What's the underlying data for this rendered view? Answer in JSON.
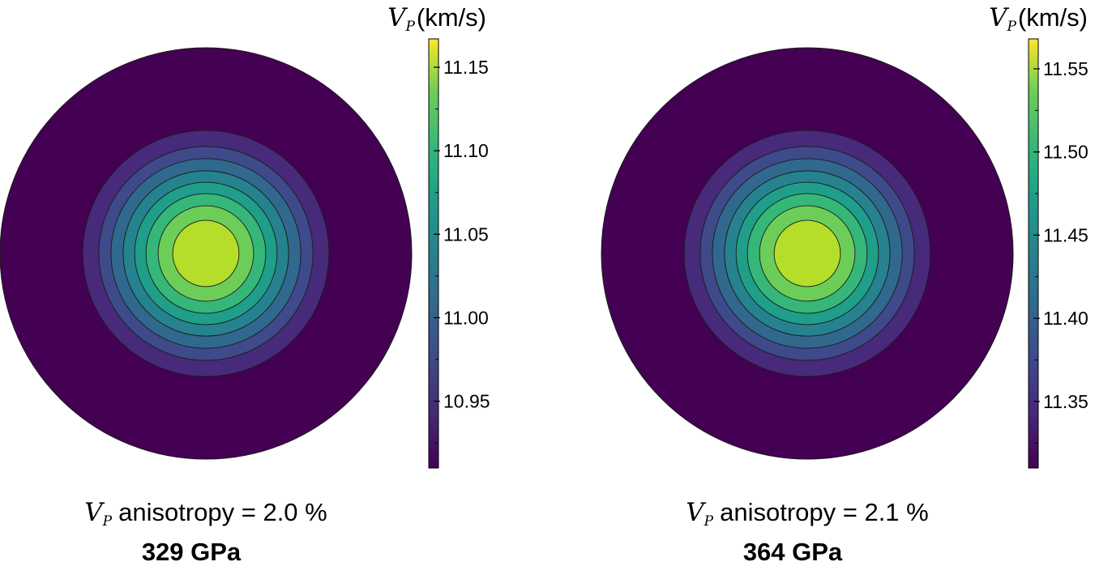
{
  "chart_data": [
    {
      "type": "heatmap",
      "subtype": "filled-contour-polar",
      "colormap": "viridis",
      "colorbar_label_symbol": "V",
      "colorbar_label_subscript": "P",
      "colorbar_label_unit": "(km/s)",
      "colorbar_range": [
        10.91,
        11.167
      ],
      "colorbar_ticks": [
        "10.95",
        "11.00",
        "11.05",
        "11.10",
        "11.15"
      ],
      "colorbar_tick_values": [
        10.95,
        11.0,
        11.05,
        11.1,
        11.15
      ],
      "max_at": "center",
      "contour_line_count": 8,
      "caption_symbol": "V",
      "caption_subscript": "P",
      "caption_text": "anisotropy = 2.0 %",
      "anisotropy_percent": 2.0,
      "pressure_label": "329 GPa"
    },
    {
      "type": "heatmap",
      "subtype": "filled-contour-polar",
      "colormap": "viridis",
      "colorbar_label_symbol": "V",
      "colorbar_label_subscript": "P",
      "colorbar_label_unit": "(km/s)",
      "colorbar_range": [
        11.31,
        11.568
      ],
      "colorbar_ticks": [
        "11.35",
        "11.40",
        "11.45",
        "11.50",
        "11.55"
      ],
      "colorbar_tick_values": [
        11.35,
        11.4,
        11.45,
        11.5,
        11.55
      ],
      "max_at": "center",
      "contour_line_count": 8,
      "caption_symbol": "V",
      "caption_subscript": "P",
      "caption_text": "anisotropy = 2.1 %",
      "anisotropy_percent": 2.1,
      "pressure_label": "364 GPa"
    }
  ],
  "colors": {
    "levels": [
      "#440154",
      "#472a7a",
      "#3e4a89",
      "#31688e",
      "#26828e",
      "#1f9e89",
      "#35b779",
      "#6dcd59",
      "#b5de2b"
    ],
    "contour_line": "#1a1a1a"
  }
}
